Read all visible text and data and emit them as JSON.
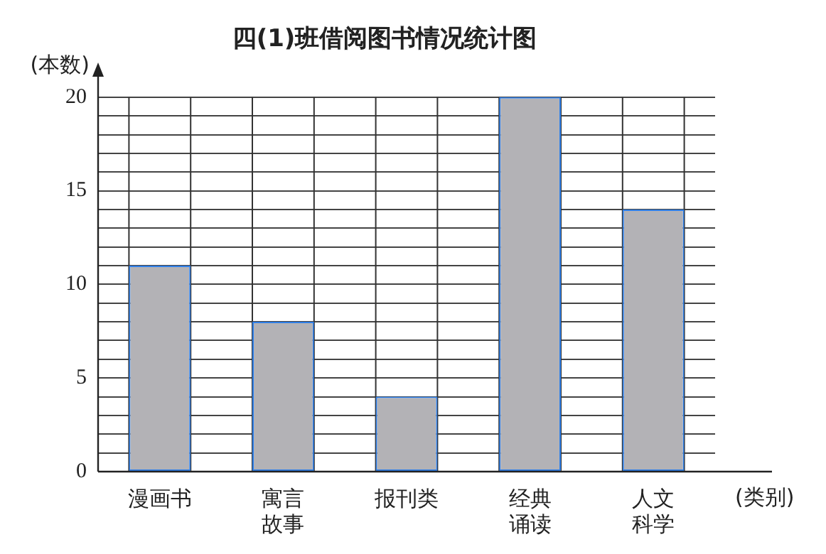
{
  "chart_data": {
    "type": "bar",
    "title": "四(1)班借阅图书情况统计图",
    "xlabel": "(类别)",
    "ylabel": "(本数)",
    "categories": [
      "漫画书",
      "寓言故事",
      "报刊类",
      "经典诵读",
      "人文科学"
    ],
    "values": [
      11,
      8,
      4,
      20,
      14
    ],
    "color": "#b3b2b6",
    "ylim": [
      0,
      20
    ],
    "yticks": [
      0,
      {
        "value": 1,
        "label": null
      },
      {
        "value": 2,
        "label": null
      },
      {
        "value": 3,
        "label": null
      },
      {
        "value": 4,
        "label": null
      },
      5,
      {
        "value": 6,
        "label": null
      },
      {
        "value": 7,
        "label": null
      },
      {
        "value": 8,
        "label": null
      },
      {
        "value": 9,
        "label": null
      },
      10,
      {
        "value": 11,
        "label": null
      },
      {
        "value": 12,
        "label": null
      },
      {
        "value": 13,
        "label": null
      },
      {
        "value": 14,
        "label": null
      },
      15,
      {
        "value": 16,
        "label": null
      },
      {
        "value": 17,
        "label": null
      },
      {
        "value": 18,
        "label": null
      },
      {
        "value": 19,
        "label": null
      },
      20
    ],
    "grid": true
  }
}
